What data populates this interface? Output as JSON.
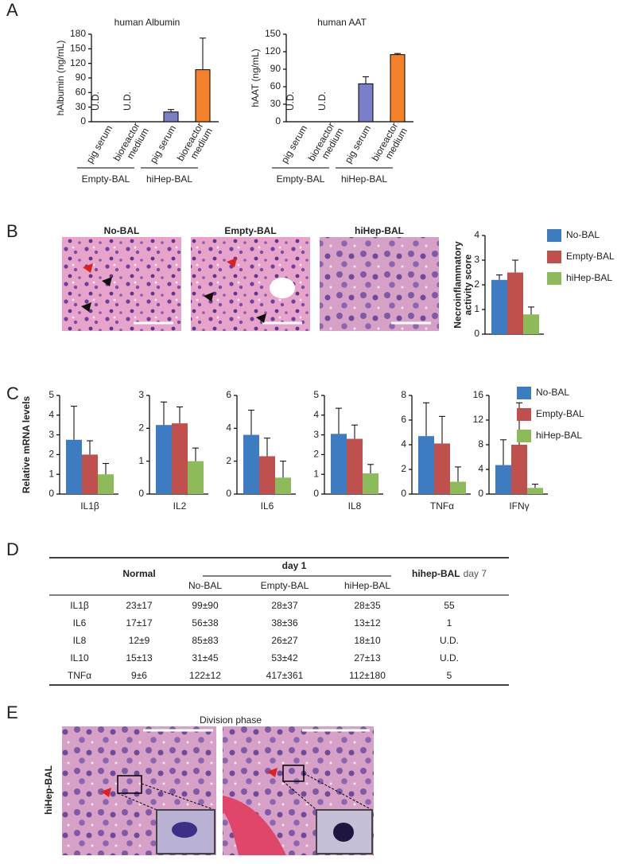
{
  "panels": [
    "A",
    "B",
    "C",
    "D",
    "E"
  ],
  "chart_data": [
    {
      "type": "bar",
      "title": "human Albumin",
      "y_label": "hAlbumin (ng/mL)",
      "categories": [
        "pig serum",
        "bioreactor medium",
        "pig serum",
        "bioreactor medium"
      ],
      "groups": [
        "Empty-BAL",
        "hiHep-BAL"
      ],
      "values": [
        null,
        null,
        20,
        107
      ],
      "value_labels": [
        "U.D.",
        "U.D.",
        null,
        null
      ],
      "errors": [
        null,
        null,
        5,
        65
      ],
      "colors": [
        null,
        null,
        "#7b7fc8",
        "#f5822a"
      ],
      "ylim": [
        0,
        180
      ],
      "yticks": [
        0,
        30,
        60,
        90,
        120,
        150,
        180
      ]
    },
    {
      "type": "bar",
      "title": "human AAT",
      "y_label": "hAAT (ng/mL)",
      "categories": [
        "pig serum",
        "bioreactor medium",
        "pig serum",
        "bioreactor medium"
      ],
      "groups": [
        "Empty-BAL",
        "hiHep-BAL"
      ],
      "values": [
        null,
        null,
        65,
        115
      ],
      "value_labels": [
        "U.D.",
        "U.D.",
        null,
        null
      ],
      "errors": [
        null,
        null,
        12,
        2
      ],
      "colors": [
        null,
        null,
        "#7b7fc8",
        "#f5822a"
      ],
      "ylim": [
        0,
        150
      ],
      "yticks": [
        0,
        30,
        60,
        90,
        120,
        150
      ]
    },
    {
      "type": "grouped_bar",
      "y_label": "Necroinflammatory activity score",
      "categories": [
        null
      ],
      "series": [
        {
          "name": "No-BAL",
          "color": "#3d7cc0",
          "values": [
            2.2
          ],
          "errors": [
            0.2
          ]
        },
        {
          "name": "Empty-BAL",
          "color": "#c0504d",
          "values": [
            2.5
          ],
          "errors": [
            0.5
          ]
        },
        {
          "name": "hiHep-BAL",
          "color": "#8dbb5a",
          "values": [
            0.8
          ],
          "errors": [
            0.3
          ]
        }
      ],
      "ylim": [
        0,
        4
      ],
      "yticks": [
        0,
        1,
        2,
        3,
        4
      ],
      "legend": "right"
    },
    {
      "type": "grouped_bar",
      "y_label": "Relative mRNA levels",
      "categories": [
        "IL1β",
        "IL2",
        "IL6",
        "IL8",
        "TNFα",
        "IFNγ"
      ],
      "series": [
        {
          "name": "No-BAL",
          "color": "#3d7cc0",
          "values": [
            2.75,
            2.1,
            3.6,
            3.05,
            4.7,
            4.7
          ],
          "errors": [
            1.7,
            0.7,
            1.5,
            1.3,
            2.7,
            4.1
          ]
        },
        {
          "name": "Empty-BAL",
          "color": "#c0504d",
          "values": [
            2.0,
            2.15,
            2.3,
            2.8,
            4.1,
            8.0
          ],
          "errors": [
            0.7,
            0.5,
            1.1,
            0.7,
            2.2,
            6.8
          ]
        },
        {
          "name": "hiHep-BAL",
          "color": "#8dbb5a",
          "values": [
            1.0,
            1.0,
            1.0,
            1.05,
            1.0,
            1.0
          ],
          "errors": [
            0.55,
            0.4,
            1.0,
            0.45,
            1.2,
            0.6
          ]
        }
      ],
      "ylim": [
        [
          0,
          5
        ],
        [
          0,
          3
        ],
        [
          0,
          6
        ],
        [
          0,
          5
        ],
        [
          0,
          8
        ],
        [
          0,
          16
        ]
      ],
      "yticks": [
        [
          0,
          1,
          2,
          3,
          4,
          5
        ],
        [
          0,
          1,
          2,
          3
        ],
        [
          0,
          2,
          4,
          6
        ],
        [
          0,
          1,
          2,
          3,
          4,
          5
        ],
        [
          0,
          2,
          4,
          6,
          8
        ],
        [
          0,
          4,
          8,
          12,
          16
        ]
      ],
      "legend": "right"
    }
  ],
  "images": {
    "B": [
      "No-BAL",
      "Empty-BAL",
      "hiHep-BAL"
    ],
    "E": {
      "title": "Division phase",
      "row_label": "hiHep-BAL"
    }
  },
  "table": {
    "normal": "Normal",
    "day1": "day 1",
    "day1_columns": [
      "No-BAL",
      "Empty-BAL",
      "hiHep-BAL"
    ],
    "day7_bold": "hihep-BAL",
    "day7": "day 7",
    "rows": [
      [
        "IL1β",
        "23±17",
        "99±90",
        "28±37",
        "28±35",
        "55"
      ],
      [
        "IL6",
        "17±17",
        "56±38",
        "38±36",
        "13±12",
        "1"
      ],
      [
        "IL8",
        "12±9",
        "85±83",
        "26±27",
        "18±10",
        "U.D."
      ],
      [
        "IL10",
        "15±13",
        "31±45",
        "53±42",
        "27±13",
        "U.D."
      ],
      [
        "TNFα",
        "9±6",
        "122±12",
        "417±361",
        "112±180",
        "5"
      ]
    ]
  }
}
